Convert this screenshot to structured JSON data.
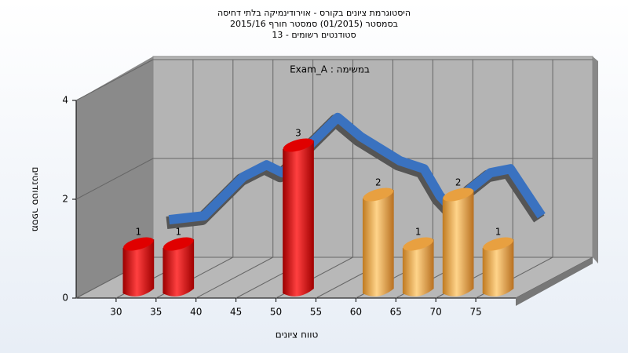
{
  "chart_data": {
    "type": "histogram",
    "title": "היסטוגרמת ציונים בקורס - אוירודינמיקה בלתי דחיסה",
    "subtitle": "בסמסטר (01/2015) סמסטר חורף 2015/16",
    "subtitle2": "סטודנטים רשומים - 13",
    "annotation": "במשימה : Exam_A",
    "xlabel": "טווח ציונים",
    "ylabel": "מספר סטודנטים",
    "bins": [
      30,
      35,
      40,
      45,
      50,
      55,
      60,
      65,
      70,
      75,
      80
    ],
    "counts": [
      1,
      1,
      0,
      0,
      3,
      0,
      2,
      1,
      2,
      1
    ],
    "colors": [
      "red",
      "red",
      "red",
      "red",
      "red",
      "orange",
      "orange",
      "orange",
      "orange",
      "orange"
    ],
    "xlim": [
      25,
      80
    ],
    "xticks": [
      30,
      35,
      40,
      45,
      50,
      55,
      60,
      65,
      70,
      75
    ],
    "ylim": [
      0,
      4
    ],
    "yticks": [
      0,
      2,
      4
    ],
    "grid": true,
    "line": {
      "color": "#3a72c0",
      "x": [
        27.0,
        31.4,
        36.3,
        39.2,
        41.2,
        45.1,
        48.1,
        51.0,
        55.9,
        58.9,
        60.9,
        62.3,
        64.8,
        67.2,
        69.7,
        73.6
      ],
      "values": [
        0.76,
        0.84,
        1.63,
        1.87,
        1.71,
        2.35,
        2.83,
        2.44,
        1.95,
        1.79,
        1.24,
        1.0,
        1.4,
        1.71,
        1.79,
        0.84
      ]
    }
  }
}
